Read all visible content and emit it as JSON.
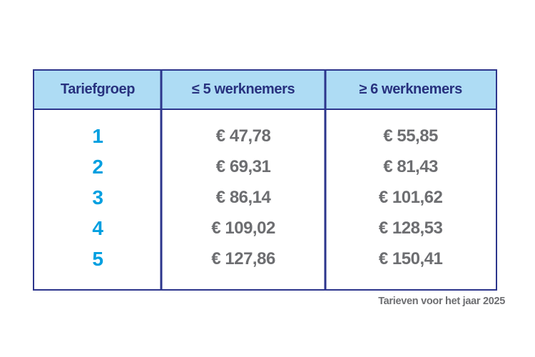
{
  "table": {
    "headers": {
      "group": "Tariefgroep",
      "small_company": "≤ 5 werknemers",
      "large_company": "≥ 6 werknemers"
    },
    "rows": [
      {
        "group": "1",
        "small": "€ 47,78",
        "large": "€ 55,85"
      },
      {
        "group": "2",
        "small": "€ 69,31",
        "large": "€ 81,43"
      },
      {
        "group": "3",
        "small": "€ 86,14",
        "large": "€ 101,62"
      },
      {
        "group": "4",
        "small": "€ 109,02",
        "large": "€ 128,53"
      },
      {
        "group": "5",
        "small": "€ 127,86",
        "large": "€ 150,41"
      }
    ]
  },
  "footer": {
    "caption": "Tarieven voor het jaar 2025"
  },
  "colors": {
    "border_navy": "#2c358c",
    "header_text_navy": "#27317e",
    "header_background": "#aedcf4",
    "group_number_cyan": "#009fe0",
    "value_gray": "#6d6e71",
    "page_background": "#ffffff"
  }
}
